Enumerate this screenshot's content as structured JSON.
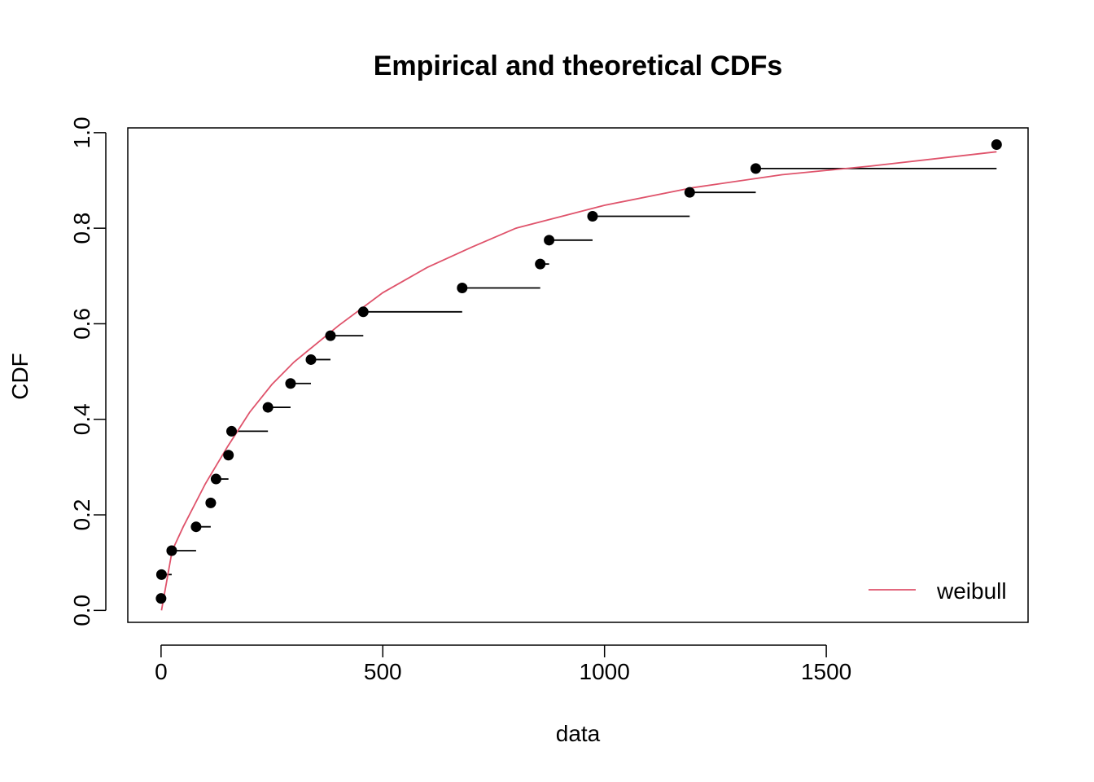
{
  "chart_data": {
    "type": "line",
    "title": "Empirical and theoretical CDFs",
    "xlabel": "data",
    "ylabel": "CDF",
    "xlim": [
      -75,
      1955
    ],
    "ylim": [
      -0.025,
      1.01
    ],
    "x_ticks": [
      0,
      500,
      1000,
      1500
    ],
    "x_tick_labels": [
      "0",
      "500",
      "1000",
      "1500"
    ],
    "y_ticks": [
      0.0,
      0.2,
      0.4,
      0.6,
      0.8,
      1.0
    ],
    "y_tick_labels": [
      "0.0",
      "0.2",
      "0.4",
      "0.6",
      "0.8",
      "1.0"
    ],
    "grid": false,
    "legend": {
      "position": "bottom-right",
      "entries": [
        {
          "label": "weibull",
          "color": "#DF536B"
        }
      ]
    },
    "empirical": {
      "x": [
        0,
        1,
        24,
        79,
        112,
        124,
        152,
        159,
        241,
        292,
        338,
        382,
        456,
        679,
        855,
        875,
        973,
        1192,
        1341,
        1884
      ],
      "cdf": [
        0.025,
        0.075,
        0.125,
        0.175,
        0.225,
        0.275,
        0.325,
        0.375,
        0.425,
        0.475,
        0.525,
        0.575,
        0.625,
        0.675,
        0.725,
        0.775,
        0.825,
        0.875,
        0.925,
        0.975
      ],
      "color": "#000000"
    },
    "theoretical": {
      "name": "weibull",
      "x": [
        1,
        25,
        50,
        100,
        150,
        200,
        250,
        300,
        400,
        500,
        600,
        700,
        800,
        1000,
        1200,
        1400,
        1600,
        1884
      ],
      "cdf": [
        0.0,
        0.125,
        0.175,
        0.265,
        0.343,
        0.415,
        0.473,
        0.52,
        0.596,
        0.665,
        0.718,
        0.76,
        0.8,
        0.848,
        0.885,
        0.912,
        0.93,
        0.96
      ],
      "color": "#DF536B"
    }
  }
}
